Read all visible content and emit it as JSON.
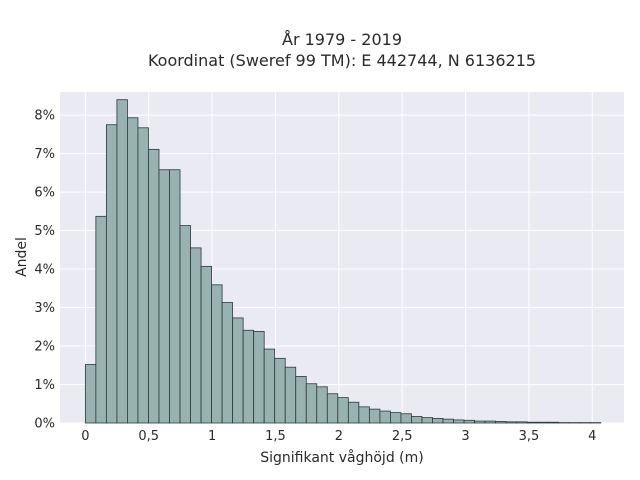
{
  "chart_data": {
    "type": "bar",
    "title_line1": "År 1979 - 2019",
    "title_line2": "Koordinat (Sweref 99 TM): E 442744, N 6136215",
    "xlabel": "Signifikant våghöjd (m)",
    "ylabel": "Andel",
    "xlim": [
      -0.2,
      4.25
    ],
    "ylim": [
      0,
      8.6
    ],
    "bin_width": 0.083,
    "x_ticks": [
      0,
      0.5,
      1,
      1.5,
      2,
      2.5,
      3,
      3.5,
      4
    ],
    "x_tick_labels": [
      "0",
      "0,5",
      "1",
      "1,5",
      "2",
      "2,5",
      "3",
      "3,5",
      "4"
    ],
    "y_ticks": [
      0,
      1,
      2,
      3,
      4,
      5,
      6,
      7,
      8
    ],
    "y_tick_labels": [
      "0%",
      "1%",
      "2%",
      "3%",
      "4%",
      "5%",
      "6%",
      "7%",
      "8%"
    ],
    "grid": true,
    "bins_start": [
      0.0,
      0.083,
      0.166,
      0.249,
      0.332,
      0.415,
      0.498,
      0.581,
      0.664,
      0.747,
      0.83,
      0.913,
      0.996,
      1.079,
      1.162,
      1.245,
      1.328,
      1.411,
      1.494,
      1.577,
      1.66,
      1.743,
      1.826,
      1.909,
      1.992,
      2.075,
      2.158,
      2.241,
      2.324,
      2.407,
      2.49,
      2.573,
      2.656,
      2.739,
      2.822,
      2.905,
      2.988,
      3.071,
      3.154,
      3.237,
      3.32,
      3.403,
      3.486,
      3.569,
      3.652,
      3.735,
      3.818,
      3.901,
      3.984
    ],
    "values": [
      1.52,
      5.37,
      7.75,
      8.4,
      7.93,
      7.67,
      7.11,
      6.58,
      6.58,
      5.13,
      4.55,
      4.07,
      3.59,
      3.13,
      2.73,
      2.41,
      2.38,
      1.92,
      1.68,
      1.45,
      1.21,
      1.02,
      0.94,
      0.76,
      0.66,
      0.54,
      0.42,
      0.36,
      0.31,
      0.27,
      0.24,
      0.17,
      0.14,
      0.12,
      0.1,
      0.08,
      0.07,
      0.05,
      0.05,
      0.04,
      0.03,
      0.03,
      0.02,
      0.02,
      0.02,
      0.01,
      0.01,
      0.01,
      0.01
    ]
  },
  "colors": {
    "background": "#eaeaf2",
    "grid": "#ffffff",
    "bar_fill": "#98b2b0",
    "bar_edge": "#2b3a3a"
  }
}
